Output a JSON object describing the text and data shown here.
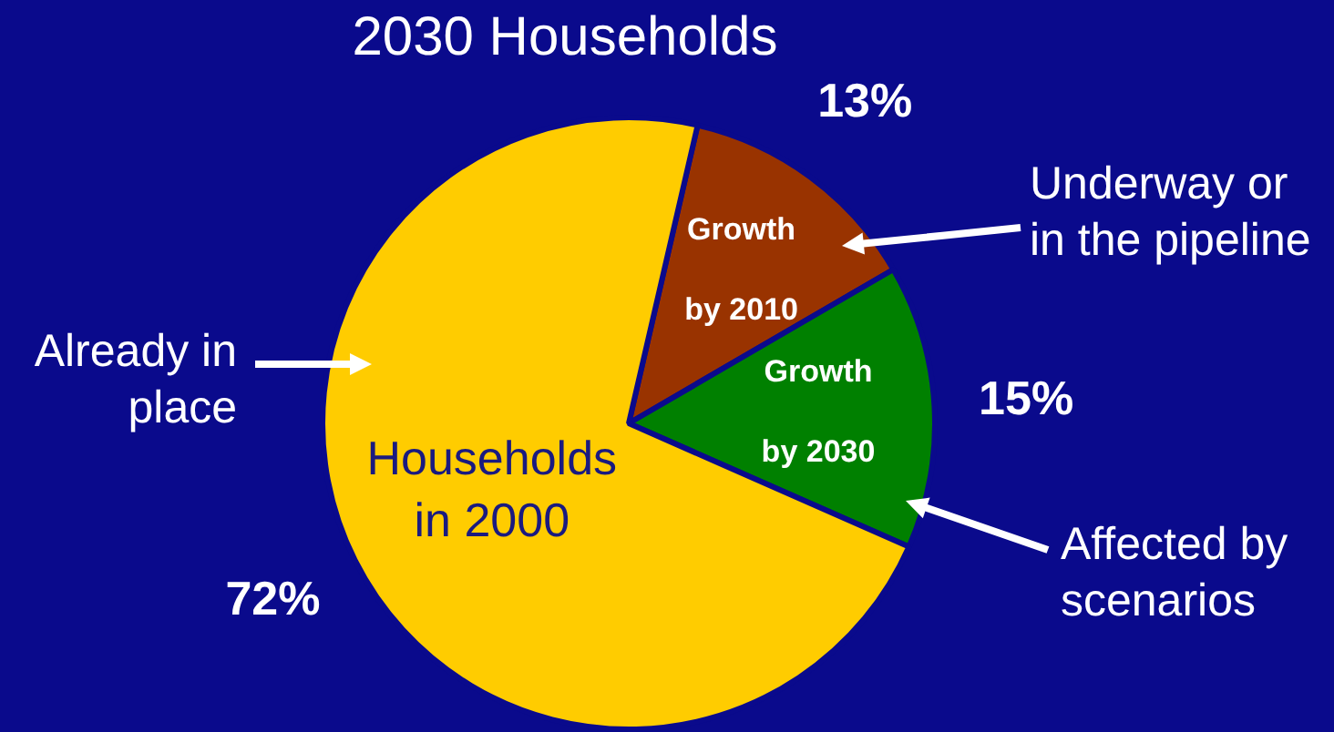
{
  "chart_data": {
    "type": "pie",
    "title": "2030 Households",
    "categories": [
      "Growth by 2010",
      "Growth by 2030",
      "Households in 2000"
    ],
    "values": [
      13,
      15,
      72
    ],
    "colors": [
      "#993300",
      "#008000",
      "#ffcc00"
    ],
    "value_labels": [
      "13%",
      "15%",
      "72%"
    ],
    "legend": false,
    "annotations": [
      "Underway or in the pipeline",
      "Affected by scenarios",
      "Already in place"
    ]
  }
}
